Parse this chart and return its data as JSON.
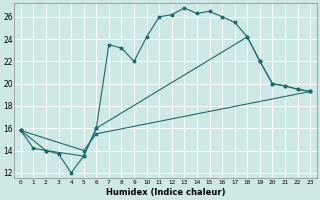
{
  "xlabel": "Humidex (Indice chaleur)",
  "background_color": "#cde8e5",
  "grid_color": "#ffffff",
  "line_color": "#1a6b6b",
  "xlim": [
    -0.5,
    23.5
  ],
  "ylim": [
    11.5,
    27.2
  ],
  "yticks": [
    12,
    14,
    16,
    18,
    20,
    22,
    24,
    26
  ],
  "xticks": [
    0,
    1,
    2,
    3,
    4,
    5,
    6,
    7,
    8,
    9,
    10,
    11,
    12,
    13,
    14,
    15,
    16,
    17,
    18,
    19,
    20,
    21,
    22,
    23
  ],
  "series1": [
    [
      0,
      15.8
    ],
    [
      1,
      14.2
    ],
    [
      2,
      14.0
    ],
    [
      3,
      13.7
    ],
    [
      4,
      12.0
    ],
    [
      5,
      13.5
    ],
    [
      6,
      16.0
    ],
    [
      7,
      23.5
    ],
    [
      8,
      23.2
    ],
    [
      9,
      22.0
    ],
    [
      10,
      24.2
    ],
    [
      11,
      26.0
    ],
    [
      12,
      26.2
    ],
    [
      13,
      26.8
    ],
    [
      14,
      26.3
    ],
    [
      15,
      26.5
    ],
    [
      16,
      26.0
    ],
    [
      17,
      25.5
    ],
    [
      18,
      24.2
    ],
    [
      19,
      22.0
    ],
    [
      20,
      20.0
    ],
    [
      21,
      19.8
    ],
    [
      22,
      19.5
    ],
    [
      23,
      19.3
    ]
  ],
  "series2": [
    [
      0,
      15.8
    ],
    [
      2,
      14.0
    ],
    [
      5,
      13.5
    ],
    [
      6,
      16.0
    ],
    [
      18,
      24.2
    ],
    [
      19,
      22.0
    ],
    [
      20,
      20.0
    ],
    [
      21,
      19.8
    ],
    [
      22,
      19.5
    ],
    [
      23,
      19.3
    ]
  ],
  "series3": [
    [
      0,
      15.8
    ],
    [
      5,
      14.0
    ],
    [
      6,
      15.5
    ],
    [
      23,
      19.3
    ]
  ]
}
